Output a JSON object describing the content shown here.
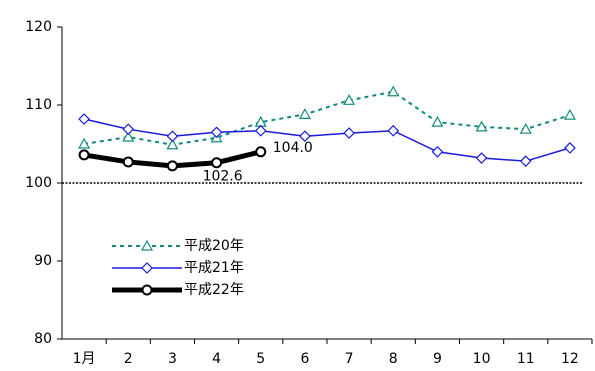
{
  "chart_data": {
    "type": "line",
    "categories": [
      "1月",
      "2",
      "3",
      "4",
      "5",
      "6",
      "7",
      "8",
      "9",
      "10",
      "11",
      "12"
    ],
    "series": [
      {
        "name": "平成20年",
        "color": "#138a7e",
        "dash": "4,4",
        "marker": "triangle",
        "width": 2,
        "values": [
          105.0,
          105.9,
          104.9,
          105.8,
          107.8,
          108.8,
          110.6,
          111.7,
          107.8,
          107.2,
          106.9,
          108.7
        ]
      },
      {
        "name": "平成21年",
        "color": "#1a1adc",
        "marker": "diamond",
        "width": 1.5,
        "values": [
          108.2,
          106.9,
          106.0,
          106.5,
          106.7,
          106.0,
          106.4,
          106.7,
          104.0,
          103.2,
          102.8,
          104.5
        ]
      },
      {
        "name": "平成22年",
        "color": "#000000",
        "marker": "circle",
        "width": 5,
        "values": [
          103.6,
          102.7,
          102.2,
          102.6,
          104.0,
          null,
          null,
          null,
          null,
          null,
          null,
          null
        ],
        "value_labels": [
          null,
          null,
          null,
          "102.6",
          "104.0",
          null,
          null,
          null,
          null,
          null,
          null,
          null
        ]
      }
    ],
    "ylim": [
      80,
      120
    ],
    "yticks": [
      80,
      90,
      100,
      110,
      120
    ],
    "reference_line": 100,
    "grid": false,
    "legend": "lower left"
  }
}
